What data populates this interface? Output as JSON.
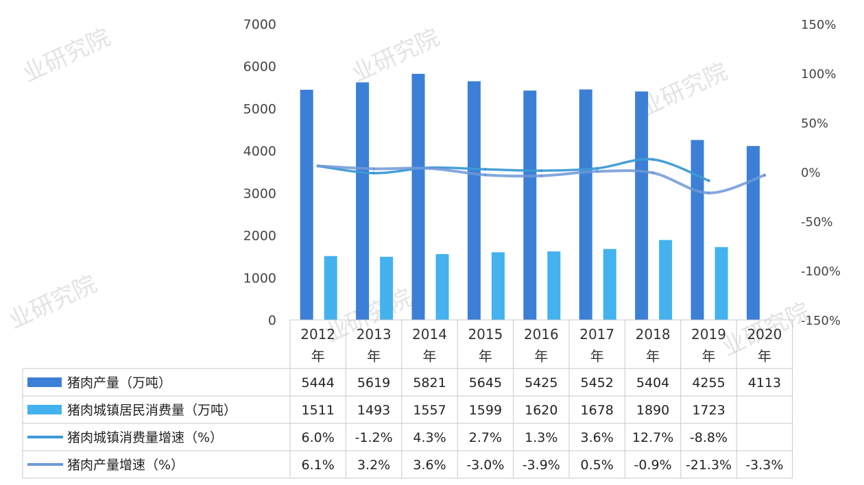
{
  "chart_data": {
    "type": "bar",
    "categories": [
      "2012年",
      "2013年",
      "2014年",
      "2015年",
      "2016年",
      "2017年",
      "2018年",
      "2019年",
      "2020年"
    ],
    "y_left": {
      "ticks": [
        "0",
        "1000",
        "2000",
        "3000",
        "4000",
        "5000",
        "6000",
        "7000"
      ],
      "range": [
        0,
        7000
      ]
    },
    "y_right": {
      "ticks": [
        "-150%",
        "-100%",
        "-50%",
        "0%",
        "50%",
        "100%",
        "150%"
      ],
      "range": [
        -150,
        150
      ]
    },
    "grid": false,
    "legend": "data-table-below",
    "series": [
      {
        "name": "猪肉产量（万吨）",
        "kind": "bar",
        "axis": "left",
        "color": "#3c7fd6",
        "values": [
          5444,
          5619,
          5821,
          5645,
          5425,
          5452,
          5404,
          4255,
          4113
        ],
        "labels": [
          "5444",
          "5619",
          "5821",
          "5645",
          "5425",
          "5452",
          "5404",
          "4255",
          "4113"
        ]
      },
      {
        "name": "猪肉城镇居民消费量（万吨）",
        "kind": "bar",
        "axis": "left",
        "color": "#43b2ee",
        "values": [
          1511,
          1493,
          1557,
          1599,
          1620,
          1678,
          1890,
          1723,
          null
        ],
        "labels": [
          "1511",
          "1493",
          "1557",
          "1599",
          "1620",
          "1678",
          "1890",
          "1723",
          ""
        ]
      },
      {
        "name": "猪肉城镇消费量增速（%）",
        "kind": "line",
        "axis": "right",
        "color": "#3d9ad6",
        "values": [
          6.0,
          -1.2,
          4.3,
          2.7,
          1.3,
          3.6,
          12.7,
          -8.8,
          null
        ],
        "labels": [
          "6.0%",
          "-1.2%",
          "4.3%",
          "2.7%",
          "1.3%",
          "3.6%",
          "12.7%",
          "-8.8%",
          ""
        ]
      },
      {
        "name": "猪肉产量增速（%）",
        "kind": "line",
        "axis": "right",
        "color": "#6f98d8",
        "values": [
          6.1,
          3.2,
          3.6,
          -3.0,
          -3.9,
          0.5,
          -0.9,
          -21.3,
          -3.3
        ],
        "labels": [
          "6.1%",
          "3.2%",
          "3.6%",
          "-3.0%",
          "-3.9%",
          "0.5%",
          "-0.9%",
          "-21.3%",
          "-3.3%"
        ]
      }
    ]
  }
}
